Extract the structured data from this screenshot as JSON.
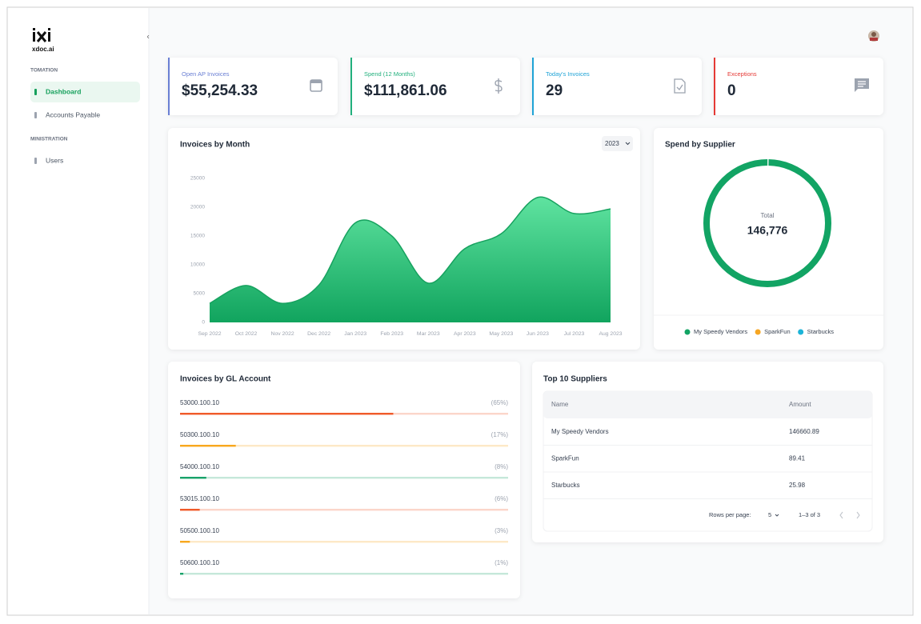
{
  "sidebar": {
    "logo": "xdoc.ai",
    "sections": [
      {
        "heading": "TOMATION",
        "items": [
          "Dashboard",
          "Accounts Payable"
        ]
      },
      {
        "heading": "MINISTRATION",
        "items": [
          "Users"
        ]
      }
    ]
  },
  "cards": [
    {
      "label": "Open AP Invoices",
      "value": "$55,254.33",
      "color": "#6a7fd4"
    },
    {
      "label": "Spend (12 Months)",
      "value": "$111,861.06",
      "color": "#22b07d"
    },
    {
      "label": "Today's Invoices",
      "value": "29",
      "color": "#1fa3d6"
    },
    {
      "label": "Exceptions",
      "value": "0",
      "color": "#e53935"
    }
  ],
  "chart_data": [
    {
      "type": "area",
      "title": "Invoices by Month",
      "selector": "2023",
      "categories": [
        "Sep 2022",
        "Oct 2022",
        "Nov 2022",
        "Dec 2022",
        "Jan 2023",
        "Feb 2023",
        "Mar 2023",
        "Apr 2023",
        "May 2023",
        "Jun 2023",
        "Jul 2023",
        "Aug 2023"
      ],
      "values": [
        3300,
        6400,
        3300,
        6500,
        17300,
        15000,
        6800,
        12800,
        15400,
        21700,
        18900,
        19700
      ],
      "color": "#17a25f",
      "ylim": [
        0,
        25000
      ],
      "yticks": [
        0,
        5000,
        10000,
        15000,
        20000,
        25000
      ],
      "grid": false
    },
    {
      "type": "donut",
      "title": "Spend by Supplier",
      "center_label": "Total",
      "center_value": "146,776",
      "series": [
        {
          "name": "My Speedy Vendors",
          "color": "#12a464",
          "value": 146660.89
        },
        {
          "name": "SparkFun",
          "color": "#f6a623",
          "value": 89.41
        },
        {
          "name": "Starbucks",
          "color": "#1cb4d8",
          "value": 25.98
        }
      ]
    },
    {
      "type": "progress",
      "title": "Invoices by GL Account",
      "categories": [
        "53000.100.10",
        "50300.100.10",
        "54000.100.10",
        "53015.100.10",
        "50500.100.10",
        "50600.100.10"
      ],
      "values": [
        65,
        17,
        8,
        6,
        3,
        1
      ],
      "value_labels": [
        "(65%)",
        "(17%)",
        "(8%)",
        "(6%)",
        "(3%)",
        "(1%)"
      ],
      "colors": [
        "#f05a2a",
        "#f8a81e",
        "#18a26a",
        "#f05a2a",
        "#f8a81e",
        "#18a26a"
      ],
      "xlim": [
        0,
        100
      ]
    }
  ],
  "top_suppliers": {
    "title": "Top 10 Suppliers",
    "columns": [
      "Name",
      "Amount"
    ],
    "rows": [
      [
        "My Speedy Vendors",
        "146660.89"
      ],
      [
        "SparkFun",
        "89.41"
      ],
      [
        "Starbucks",
        "25.98"
      ]
    ],
    "footer": {
      "rows_per_page_label": "Rows per page:",
      "rows_per_page": "5",
      "range": "1–3 of 3"
    }
  }
}
